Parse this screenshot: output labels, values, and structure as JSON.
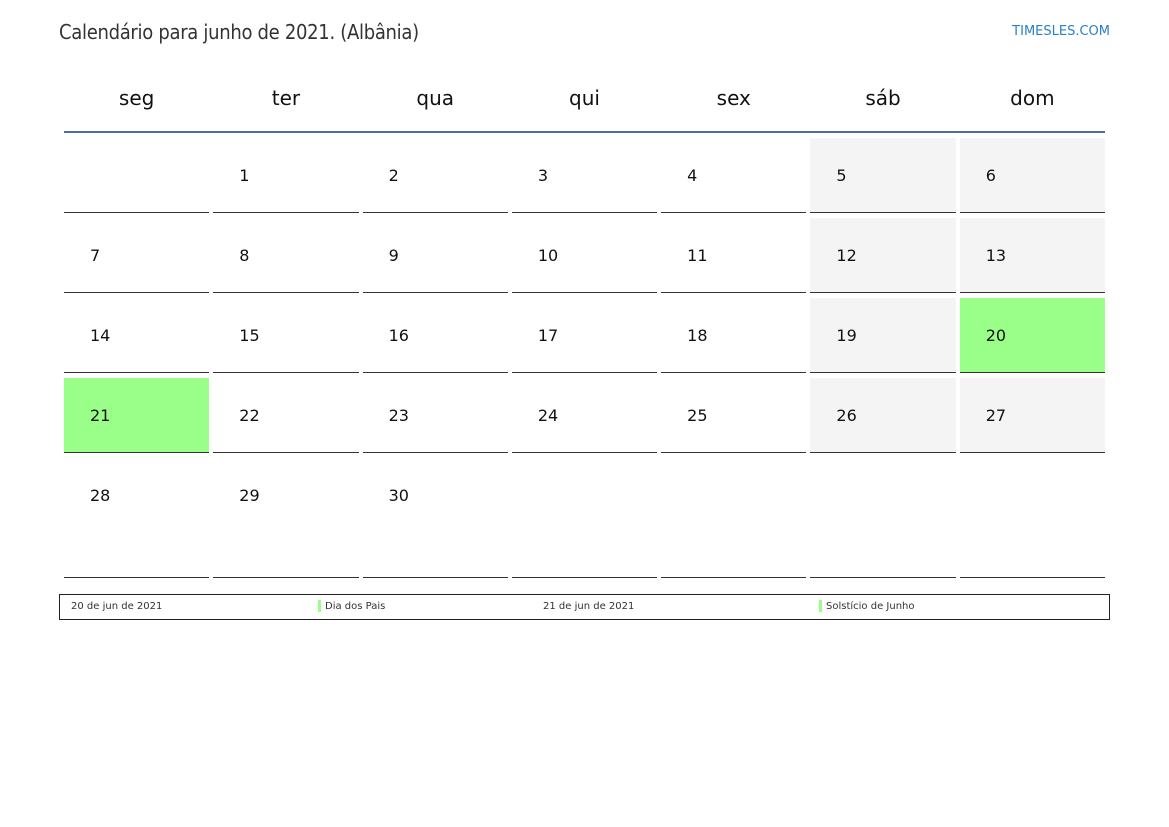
{
  "header": {
    "title": "Calendário para junho de 2021. (Albânia)",
    "brand": "TIMESLES.COM"
  },
  "weekdays": [
    "seg",
    "ter",
    "qua",
    "qui",
    "sex",
    "sáb",
    "dom"
  ],
  "weeks": [
    [
      "",
      "1",
      "2",
      "3",
      "4",
      "5",
      "6"
    ],
    [
      "7",
      "8",
      "9",
      "10",
      "11",
      "12",
      "13"
    ],
    [
      "14",
      "15",
      "16",
      "17",
      "18",
      "19",
      "20"
    ],
    [
      "21",
      "22",
      "23",
      "24",
      "25",
      "26",
      "27"
    ],
    [
      "28",
      "29",
      "30",
      "",
      "",
      "",
      ""
    ]
  ],
  "holidays": [
    "20",
    "21"
  ],
  "colors": {
    "holiday": "#99ff88",
    "weekend": "#f4f4f4",
    "header_line": "#4d6f9c",
    "brand": "#2a7fc8"
  },
  "legend": [
    {
      "date": "20 de jun de 2021",
      "name": "Dia dos Pais",
      "color": "#99ff88"
    },
    {
      "date": "21 de jun de 2021",
      "name": "Solstício de Junho",
      "color": "#99ff88"
    }
  ]
}
